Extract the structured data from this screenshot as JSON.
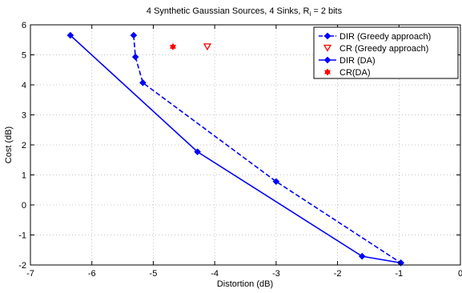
{
  "chart_data": {
    "type": "line",
    "title_main": "4 Synthetic Gaussian Sources, 4 Sinks, R",
    "title_sub": "i",
    "title_tail": " = 2 bits",
    "xlabel": "Distortion (dB)",
    "ylabel": "Cost (dB)",
    "xlim": [
      -7,
      0
    ],
    "ylim": [
      -2,
      6
    ],
    "xticks": [
      -7,
      -6,
      -5,
      -4,
      -3,
      -2,
      -1,
      0
    ],
    "xtick_labels": [
      "-7",
      "-6",
      "-5",
      "-4",
      "-3",
      "-2",
      "-1",
      "0"
    ],
    "yticks": [
      -2,
      -1,
      0,
      1,
      2,
      3,
      4,
      5,
      6
    ],
    "ytick_labels": [
      "-2",
      "-1",
      "0",
      "1",
      "2",
      "3",
      "4",
      "5",
      "6"
    ],
    "grid": true,
    "legend_position": "top-right",
    "series": [
      {
        "name": "DIR (Greedy approach)",
        "color": "#0000ff",
        "line": "dashed",
        "marker": "diamond",
        "x": [
          -5.32,
          -5.29,
          -5.17,
          -3.0,
          -0.97
        ],
        "y": [
          5.65,
          4.93,
          4.07,
          0.78,
          -1.93
        ]
      },
      {
        "name": "CR (Greedy approach)",
        "color": "#ff0000",
        "line": "none",
        "marker": "triangle-down",
        "x": [
          -4.12
        ],
        "y": [
          5.27
        ]
      },
      {
        "name": "DIR (DA)",
        "color": "#0000ff",
        "line": "solid",
        "marker": "diamond",
        "x": [
          -6.35,
          -4.28,
          -1.6,
          -0.97
        ],
        "y": [
          5.65,
          1.77,
          -1.71,
          -1.93
        ]
      },
      {
        "name": "CR(DA)",
        "color": "#ff0000",
        "line": "none",
        "marker": "hexagram",
        "x": [
          -4.68
        ],
        "y": [
          5.27
        ]
      }
    ]
  }
}
